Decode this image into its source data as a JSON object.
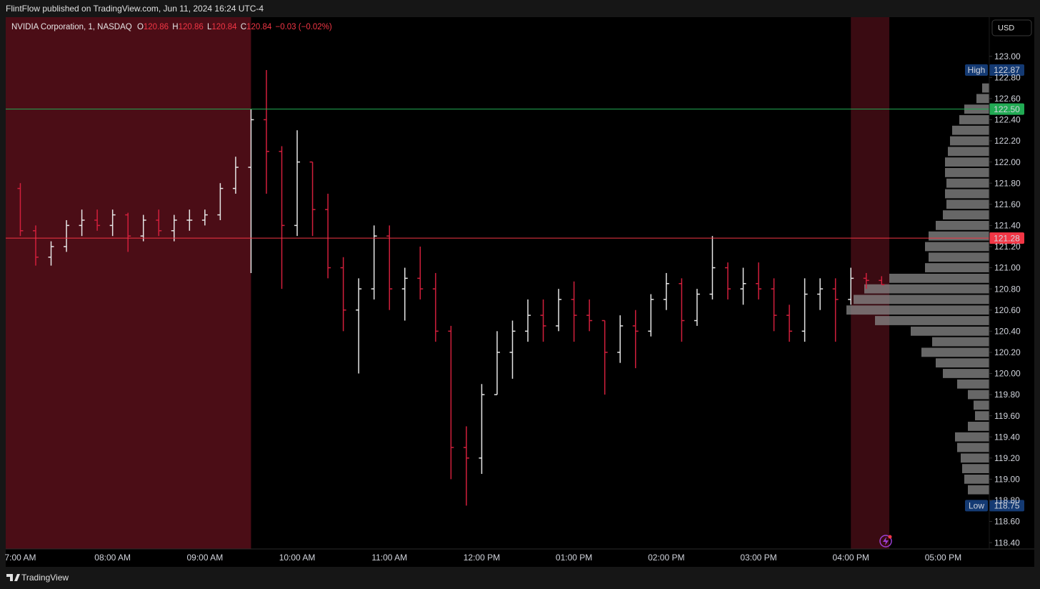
{
  "header": {
    "published": "FlintFlow published on TradingView.com, Jun 11, 2024 16:24 UTC-4"
  },
  "footer": {
    "brand": "TradingView"
  },
  "chart_data": {
    "type": "ohlc",
    "legend": {
      "symbol": "NVIDIA Corporation, 1, NASDAQ",
      "fields": [
        {
          "key": "O",
          "value": 120.86
        },
        {
          "key": "H",
          "value": 120.86
        },
        {
          "key": "L",
          "value": 120.84
        },
        {
          "key": "C",
          "value": 120.84
        }
      ],
      "change": "−0.03 (−0.02%)"
    },
    "currency": "USD",
    "up_color": "#e6e6e6",
    "down_color": "#d21f3c",
    "x": [
      420,
      430,
      440,
      450,
      460,
      470,
      480,
      490,
      500,
      510,
      520,
      530,
      540,
      550,
      560,
      570,
      580,
      590,
      600,
      610,
      620,
      630,
      640,
      650,
      660,
      670,
      680,
      690,
      700,
      710,
      720,
      730,
      740,
      750,
      760,
      770,
      780,
      790,
      800,
      810,
      820,
      830,
      840,
      850,
      860,
      870,
      880,
      890,
      900,
      910,
      920,
      930,
      940,
      950,
      960,
      970,
      980
    ],
    "ohlc": [
      [
        121.75,
        121.8,
        121.3,
        121.35
      ],
      [
        121.35,
        121.4,
        121.02,
        121.1
      ],
      [
        121.1,
        121.25,
        121.02,
        121.2
      ],
      [
        121.2,
        121.45,
        121.15,
        121.4
      ],
      [
        121.4,
        121.55,
        121.3,
        121.45
      ],
      [
        121.45,
        121.55,
        121.35,
        121.4
      ],
      [
        121.4,
        121.55,
        121.3,
        121.5
      ],
      [
        121.5,
        121.52,
        121.15,
        121.3
      ],
      [
        121.3,
        121.5,
        121.25,
        121.45
      ],
      [
        121.45,
        121.55,
        121.3,
        121.35
      ],
      [
        121.35,
        121.5,
        121.25,
        121.45
      ],
      [
        121.45,
        121.55,
        121.35,
        121.45
      ],
      [
        121.45,
        121.55,
        121.4,
        121.5
      ],
      [
        121.5,
        121.8,
        121.45,
        121.75
      ],
      [
        121.75,
        122.05,
        121.7,
        121.95
      ],
      [
        121.95,
        122.5,
        120.95,
        122.4
      ],
      [
        122.4,
        122.87,
        121.7,
        122.1
      ],
      [
        122.1,
        122.15,
        120.8,
        121.4
      ],
      [
        121.4,
        122.3,
        121.3,
        122.0
      ],
      [
        122.0,
        122.0,
        121.3,
        121.55
      ],
      [
        121.55,
        121.7,
        120.9,
        121.0
      ],
      [
        121.0,
        121.1,
        120.4,
        120.6
      ],
      [
        120.6,
        120.9,
        120.0,
        120.8
      ],
      [
        120.8,
        121.4,
        120.7,
        121.3
      ],
      [
        121.3,
        121.4,
        120.6,
        120.8
      ],
      [
        120.8,
        121.0,
        120.5,
        120.9
      ],
      [
        120.9,
        121.2,
        120.7,
        120.8
      ],
      [
        120.8,
        120.95,
        120.3,
        120.4
      ],
      [
        120.4,
        120.45,
        119.0,
        119.3
      ],
      [
        119.3,
        119.5,
        118.75,
        119.2
      ],
      [
        119.2,
        119.9,
        119.05,
        119.8
      ],
      [
        119.8,
        120.4,
        119.8,
        120.2
      ],
      [
        120.2,
        120.5,
        119.95,
        120.4
      ],
      [
        120.4,
        120.7,
        120.3,
        120.55
      ],
      [
        120.55,
        120.7,
        120.3,
        120.45
      ],
      [
        120.45,
        120.8,
        120.4,
        120.7
      ],
      [
        120.7,
        120.87,
        120.3,
        120.55
      ],
      [
        120.55,
        120.7,
        120.4,
        120.5
      ],
      [
        120.5,
        120.5,
        119.8,
        120.2
      ],
      [
        120.2,
        120.55,
        120.1,
        120.45
      ],
      [
        120.45,
        120.6,
        120.05,
        120.4
      ],
      [
        120.4,
        120.75,
        120.35,
        120.7
      ],
      [
        120.7,
        120.95,
        120.6,
        120.85
      ],
      [
        120.85,
        120.9,
        120.3,
        120.5
      ],
      [
        120.5,
        120.8,
        120.45,
        120.75
      ],
      [
        120.75,
        121.3,
        120.7,
        121.0
      ],
      [
        121.0,
        121.05,
        120.7,
        120.8
      ],
      [
        120.8,
        121.0,
        120.65,
        120.85
      ],
      [
        120.85,
        121.05,
        120.7,
        120.8
      ],
      [
        120.8,
        120.9,
        120.4,
        120.55
      ],
      [
        120.55,
        120.65,
        120.3,
        120.4
      ],
      [
        120.4,
        120.9,
        120.3,
        120.75
      ],
      [
        120.75,
        120.9,
        120.6,
        120.8
      ],
      [
        120.8,
        120.9,
        120.3,
        120.7
      ],
      [
        120.7,
        121.0,
        120.65,
        120.9
      ],
      [
        120.9,
        120.95,
        120.8,
        120.88
      ],
      [
        120.88,
        120.92,
        120.84,
        120.84
      ]
    ],
    "sessions": [
      {
        "start": 410.5,
        "end": 570,
        "color": "#4b0d16"
      },
      {
        "start": 960,
        "end": 985,
        "color": "#3a0b12"
      }
    ],
    "profile": {
      "color": "#8a8a8a",
      "prices": [
        118.9,
        119.0,
        119.1,
        119.2,
        119.3,
        119.4,
        119.5,
        119.6,
        119.7,
        119.8,
        119.9,
        120.0,
        120.1,
        120.2,
        120.3,
        120.4,
        120.5,
        120.6,
        120.7,
        120.8,
        120.9,
        121.0,
        121.1,
        121.2,
        121.3,
        121.4,
        121.5,
        121.6,
        121.7,
        121.8,
        121.9,
        122.0,
        122.1,
        122.2,
        122.3,
        122.4,
        122.5,
        122.6,
        122.7
      ],
      "volumes": [
        30,
        35,
        38,
        40,
        45,
        48,
        30,
        20,
        22,
        30,
        45,
        65,
        75,
        95,
        80,
        110,
        160,
        200,
        190,
        175,
        140,
        90,
        85,
        90,
        85,
        75,
        65,
        60,
        62,
        60,
        62,
        62,
        58,
        55,
        52,
        42,
        35,
        18,
        10
      ]
    },
    "lines": [
      {
        "value": 122.5,
        "label": "122.50",
        "color": "#22ab54"
      },
      {
        "value": 121.28,
        "label": "121.28",
        "color": "#f23645"
      }
    ],
    "badges": [
      {
        "name": "High",
        "value": 122.87,
        "color": "#143a73"
      },
      {
        "name": "Low",
        "value": 118.75,
        "color": "#143a73"
      }
    ],
    "xlim": [
      410.5,
      1050
    ],
    "ylim": [
      118.34,
      123.37
    ],
    "grid": false,
    "xticks": [
      {
        "value": 420,
        "label": "7:00 AM"
      },
      {
        "value": 480,
        "label": "08:00 AM"
      },
      {
        "value": 540,
        "label": "09:00 AM"
      },
      {
        "value": 600,
        "label": "10:00 AM"
      },
      {
        "value": 660,
        "label": "11:00 AM"
      },
      {
        "value": 720,
        "label": "12:00 PM"
      },
      {
        "value": 780,
        "label": "01:00 PM"
      },
      {
        "value": 840,
        "label": "02:00 PM"
      },
      {
        "value": 900,
        "label": "03:00 PM"
      },
      {
        "value": 960,
        "label": "04:00 PM"
      },
      {
        "value": 1020,
        "label": "05:00 PM"
      }
    ],
    "yticks": [
      {
        "value": 118.4,
        "label": "118.40"
      },
      {
        "value": 118.6,
        "label": "118.60"
      },
      {
        "value": 118.8,
        "label": "118.80"
      },
      {
        "value": 119.0,
        "label": "119.00"
      },
      {
        "value": 119.2,
        "label": "119.20"
      },
      {
        "value": 119.4,
        "label": "119.40"
      },
      {
        "value": 119.6,
        "label": "119.60"
      },
      {
        "value": 119.8,
        "label": "119.80"
      },
      {
        "value": 120.0,
        "label": "120.00"
      },
      {
        "value": 120.2,
        "label": "120.20"
      },
      {
        "value": 120.4,
        "label": "120.40"
      },
      {
        "value": 120.6,
        "label": "120.60"
      },
      {
        "value": 120.8,
        "label": "120.80"
      },
      {
        "value": 121.0,
        "label": "121.00"
      },
      {
        "value": 121.2,
        "label": "121.20"
      },
      {
        "value": 121.4,
        "label": "121.40"
      },
      {
        "value": 121.6,
        "label": "121.60"
      },
      {
        "value": 121.8,
        "label": "121.80"
      },
      {
        "value": 122.0,
        "label": "122.00"
      },
      {
        "value": 122.2,
        "label": "122.20"
      },
      {
        "value": 122.4,
        "label": "122.40"
      },
      {
        "value": 122.6,
        "label": "122.60"
      },
      {
        "value": 122.8,
        "label": "122.80"
      },
      {
        "value": 123.0,
        "label": "123.00"
      }
    ]
  }
}
